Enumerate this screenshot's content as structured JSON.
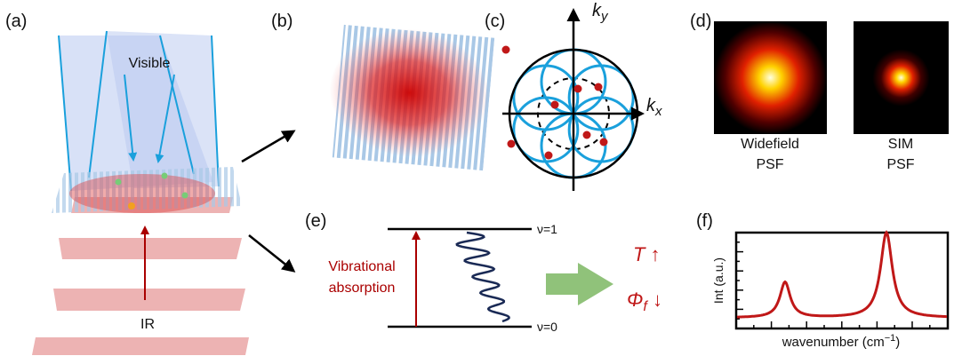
{
  "panel_labels": [
    "(a)",
    "(b)",
    "(c)",
    "(d)",
    "(e)",
    "(f)"
  ],
  "a": {
    "visible": "Visible",
    "ir": "IR"
  },
  "c": {
    "ky_base": "k",
    "ky_sub": "y",
    "kx_base": "k",
    "kx_sub": "x"
  },
  "d": {
    "widefield": [
      "Widefield",
      "PSF"
    ],
    "sim": [
      "SIM",
      "PSF"
    ]
  },
  "e": {
    "absorption": [
      "Vibrational",
      "absorption"
    ],
    "upper": "ν=1",
    "lower": "ν=0",
    "temp": "T ↑",
    "qy_base": "Φ",
    "qy_sub": "f",
    "qy_arrow": " ↓"
  },
  "f": {
    "ylabel": "Int (a.u.)",
    "xlabel_base": "wavenumber (cm",
    "xlabel_sup": "−1",
    "xlabel_end": ")"
  }
}
